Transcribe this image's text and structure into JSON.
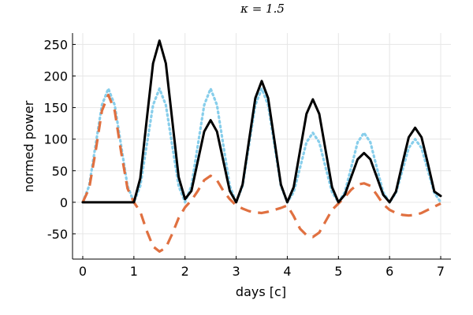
{
  "chart_data": {
    "type": "line",
    "title": "κ = 1.5",
    "xlabel": "days [c]",
    "ylabel": "normed power",
    "xlim": [
      -0.2,
      7.2
    ],
    "ylim": [
      -90,
      268
    ],
    "grid": true,
    "legend": "none",
    "x_ticks": [
      0,
      1,
      2,
      3,
      4,
      5,
      6,
      7
    ],
    "x_tick_labels": [
      "0",
      "1",
      "2",
      "3",
      "4",
      "5",
      "6",
      "7"
    ],
    "y_ticks": [
      -50,
      0,
      50,
      100,
      150,
      200,
      250
    ],
    "y_tick_labels": [
      "-50",
      "0",
      "50",
      "100",
      "150",
      "200",
      "250"
    ],
    "series": [
      {
        "style": "dotted",
        "color": "#87CEEB",
        "x": [
          0,
          0.125,
          0.25,
          0.375,
          0.5,
          0.625,
          0.75,
          0.875,
          1.0,
          1.125,
          1.25,
          1.375,
          1.5,
          1.625,
          1.75,
          1.875,
          2.0,
          2.125,
          2.25,
          2.375,
          2.5,
          2.625,
          2.75,
          2.875,
          3.0,
          3.125,
          3.25,
          3.375,
          3.5,
          3.625,
          3.75,
          3.875,
          4.0,
          4.125,
          4.25,
          4.375,
          4.5,
          4.625,
          4.75,
          4.875,
          5.0,
          5.125,
          5.25,
          5.375,
          5.5,
          5.625,
          5.75,
          5.875,
          6.0,
          6.125,
          6.25,
          6.375,
          6.5,
          6.625,
          6.75,
          6.875,
          7.0
        ],
        "values": [
          0,
          26,
          90,
          154,
          180,
          154,
          90,
          26,
          0,
          26,
          90,
          154,
          180,
          154,
          90,
          26,
          0,
          26,
          90,
          154,
          180,
          154,
          90,
          26,
          0,
          26,
          90,
          154,
          180,
          154,
          90,
          26,
          0,
          16,
          55,
          95,
          110,
          95,
          55,
          16,
          0,
          16,
          55,
          95,
          110,
          95,
          55,
          16,
          0,
          15,
          50,
          86,
          100,
          86,
          50,
          15,
          0
        ]
      },
      {
        "style": "dashed",
        "color": "#E07040",
        "x": [
          0,
          0.125,
          0.25,
          0.375,
          0.5,
          0.625,
          0.75,
          0.875,
          1.0,
          1.125,
          1.25,
          1.375,
          1.5,
          1.625,
          1.75,
          1.875,
          2.0,
          2.125,
          2.25,
          2.375,
          2.5,
          2.625,
          2.75,
          2.875,
          3.0,
          3.125,
          3.25,
          3.375,
          3.5,
          3.625,
          3.75,
          3.875,
          4.0,
          4.125,
          4.25,
          4.375,
          4.5,
          4.625,
          4.75,
          4.875,
          5.0,
          5.125,
          5.25,
          5.375,
          5.5,
          5.625,
          5.75,
          5.875,
          6.0,
          6.125,
          6.25,
          6.375,
          6.5,
          6.625,
          6.75,
          6.875,
          7.0
        ],
        "values": [
          0,
          22,
          80,
          145,
          170,
          145,
          80,
          22,
          0,
          -15,
          -45,
          -70,
          -78,
          -72,
          -50,
          -25,
          -8,
          3,
          18,
          35,
          42,
          35,
          18,
          5,
          -5,
          -10,
          -14,
          -16,
          -17,
          -15,
          -12,
          -9,
          -5,
          -22,
          -42,
          -52,
          -55,
          -48,
          -30,
          -12,
          -2,
          8,
          20,
          28,
          30,
          26,
          12,
          -3,
          -12,
          -17,
          -20,
          -21,
          -20,
          -17,
          -12,
          -7,
          -2
        ]
      },
      {
        "style": "solid",
        "color": "#000000",
        "x": [
          0,
          0.125,
          0.25,
          0.375,
          0.5,
          0.625,
          0.75,
          0.875,
          1.0,
          1.125,
          1.25,
          1.375,
          1.5,
          1.625,
          1.75,
          1.875,
          2.0,
          2.125,
          2.25,
          2.375,
          2.5,
          2.625,
          2.75,
          2.875,
          3.0,
          3.125,
          3.25,
          3.375,
          3.5,
          3.625,
          3.75,
          3.875,
          4.0,
          4.125,
          4.25,
          4.375,
          4.5,
          4.625,
          4.75,
          4.875,
          5.0,
          5.125,
          5.25,
          5.375,
          5.5,
          5.625,
          5.75,
          5.875,
          6.0,
          6.125,
          6.25,
          6.375,
          6.5,
          6.625,
          6.75,
          6.875,
          7.0
        ],
        "values": [
          0,
          0,
          0,
          0,
          0,
          0,
          0,
          0,
          0,
          38,
          130,
          220,
          256,
          220,
          130,
          40,
          5,
          18,
          65,
          112,
          130,
          112,
          65,
          18,
          0,
          28,
          97,
          165,
          192,
          165,
          97,
          28,
          0,
          24,
          82,
          140,
          163,
          140,
          82,
          24,
          0,
          12,
          40,
          68,
          78,
          68,
          40,
          12,
          0,
          17,
          61,
          103,
          118,
          103,
          61,
          17,
          10
        ]
      }
    ]
  }
}
